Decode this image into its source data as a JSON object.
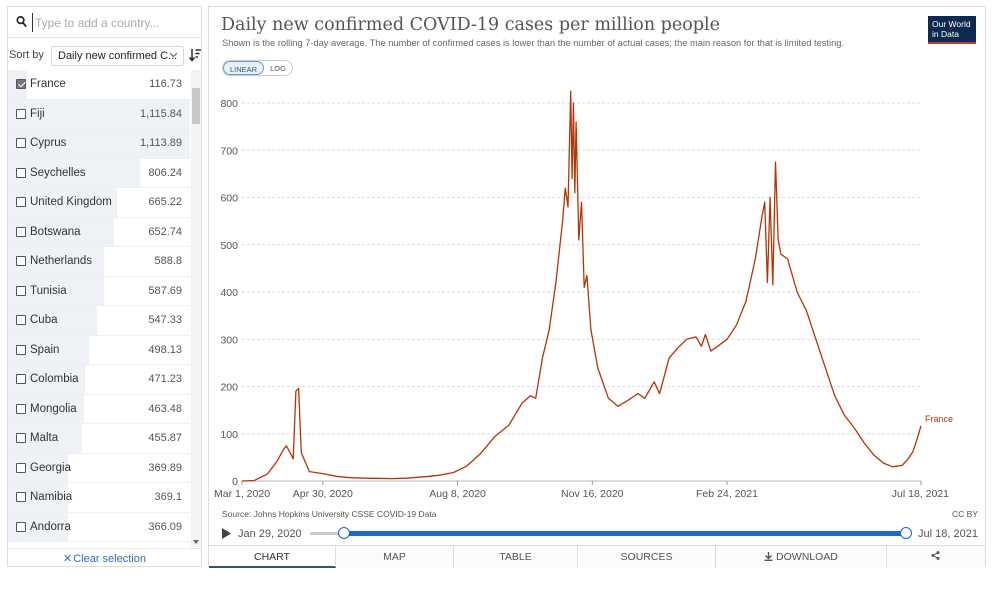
{
  "search": {
    "placeholder": "Type to add a country..."
  },
  "sort": {
    "label": "Sort by",
    "selected": "Daily new confirmed C..."
  },
  "countries": [
    {
      "name": "France",
      "value": "116.73",
      "checked": true
    },
    {
      "name": "Fiji",
      "value": "1,115.84",
      "checked": false
    },
    {
      "name": "Cyprus",
      "value": "1,113.89",
      "checked": false
    },
    {
      "name": "Seychelles",
      "value": "806.24",
      "checked": false
    },
    {
      "name": "United Kingdom",
      "value": "665.22",
      "checked": false
    },
    {
      "name": "Botswana",
      "value": "652.74",
      "checked": false
    },
    {
      "name": "Netherlands",
      "value": "588.8",
      "checked": false
    },
    {
      "name": "Tunisia",
      "value": "587.69",
      "checked": false
    },
    {
      "name": "Cuba",
      "value": "547.33",
      "checked": false
    },
    {
      "name": "Spain",
      "value": "498.13",
      "checked": false
    },
    {
      "name": "Colombia",
      "value": "471.23",
      "checked": false
    },
    {
      "name": "Mongolia",
      "value": "463.48",
      "checked": false
    },
    {
      "name": "Malta",
      "value": "455.87",
      "checked": false
    },
    {
      "name": "Georgia",
      "value": "369.89",
      "checked": false
    },
    {
      "name": "Namibia",
      "value": "369.1",
      "checked": false
    },
    {
      "name": "Andorra",
      "value": "366.09",
      "checked": false
    }
  ],
  "clear_selection": "Clear selection",
  "logo_text": "Our World in Data",
  "scale": {
    "linear": "LINEAR",
    "log": "LOG"
  },
  "source": "Source: Johns Hopkins University CSSE COVID-19 Data",
  "license": "CC BY",
  "timeline": {
    "start": "Jan 29, 2020",
    "end": "Jul 18, 2021"
  },
  "tabs": [
    "CHART",
    "MAP",
    "TABLE",
    "SOURCES",
    "DOWNLOAD",
    ""
  ],
  "colors": {
    "line": "#b13507",
    "accent": "#1a6ac6",
    "logo_bg": "#0f2a4f"
  },
  "icons": {
    "search": "search-icon",
    "sort_order": "sort-order-icon",
    "play": "play-icon",
    "download": "download-icon",
    "share": "share-icon"
  },
  "chart_data": {
    "type": "line",
    "title": "Daily new confirmed COVID-19 cases per million people",
    "subtitle": "Shown is the rolling 7-day average. The number of confirmed cases is lower than the number of actual cases; the main reason for that is limited testing.",
    "ylim": [
      0,
      800
    ],
    "yticks": [
      0,
      100,
      200,
      300,
      400,
      500,
      600,
      700,
      800
    ],
    "xticks": [
      "Mar 1, 2020",
      "Apr 30, 2020",
      "Aug 8, 2020",
      "Nov 16, 2020",
      "Feb 24, 2021",
      "Jul 18, 2021"
    ],
    "xtick_positions": [
      "2020-03-01",
      "2020-04-30",
      "2020-08-08",
      "2020-11-16",
      "2021-02-24",
      "2021-07-18"
    ],
    "xlim": [
      "2020-03-01",
      "2021-07-18"
    ],
    "grid": true,
    "series": [
      {
        "name": "France",
        "points": [
          [
            "2020-03-01",
            0
          ],
          [
            "2020-03-10",
            1
          ],
          [
            "2020-03-20",
            15
          ],
          [
            "2020-03-27",
            42
          ],
          [
            "2020-04-01",
            68
          ],
          [
            "2020-04-03",
            74
          ],
          [
            "2020-04-06",
            58
          ],
          [
            "2020-04-08",
            47
          ],
          [
            "2020-04-10",
            190
          ],
          [
            "2020-04-12",
            196
          ],
          [
            "2020-04-14",
            60
          ],
          [
            "2020-04-20",
            20
          ],
          [
            "2020-05-01",
            15
          ],
          [
            "2020-05-10",
            10
          ],
          [
            "2020-05-20",
            7
          ],
          [
            "2020-06-01",
            6
          ],
          [
            "2020-06-20",
            5
          ],
          [
            "2020-07-01",
            6
          ],
          [
            "2020-07-15",
            9
          ],
          [
            "2020-07-25",
            12
          ],
          [
            "2020-08-05",
            18
          ],
          [
            "2020-08-15",
            32
          ],
          [
            "2020-08-25",
            58
          ],
          [
            "2020-09-05",
            95
          ],
          [
            "2020-09-15",
            118
          ],
          [
            "2020-09-25",
            165
          ],
          [
            "2020-10-01",
            180
          ],
          [
            "2020-10-05",
            175
          ],
          [
            "2020-10-10",
            260
          ],
          [
            "2020-10-15",
            320
          ],
          [
            "2020-10-20",
            420
          ],
          [
            "2020-10-25",
            550
          ],
          [
            "2020-10-27",
            620
          ],
          [
            "2020-10-29",
            580
          ],
          [
            "2020-10-31",
            825
          ],
          [
            "2020-11-01",
            640
          ],
          [
            "2020-11-02",
            800
          ],
          [
            "2020-11-03",
            610
          ],
          [
            "2020-11-04",
            760
          ],
          [
            "2020-11-06",
            510
          ],
          [
            "2020-11-08",
            590
          ],
          [
            "2020-11-10",
            410
          ],
          [
            "2020-11-12",
            435
          ],
          [
            "2020-11-15",
            320
          ],
          [
            "2020-11-20",
            240
          ],
          [
            "2020-11-28",
            175
          ],
          [
            "2020-12-05",
            158
          ],
          [
            "2020-12-12",
            170
          ],
          [
            "2020-12-20",
            185
          ],
          [
            "2020-12-25",
            175
          ],
          [
            "2021-01-01",
            210
          ],
          [
            "2021-01-05",
            185
          ],
          [
            "2021-01-12",
            260
          ],
          [
            "2021-01-18",
            280
          ],
          [
            "2021-01-25",
            300
          ],
          [
            "2021-02-01",
            305
          ],
          [
            "2021-02-05",
            285
          ],
          [
            "2021-02-08",
            310
          ],
          [
            "2021-02-12",
            275
          ],
          [
            "2021-02-17",
            285
          ],
          [
            "2021-02-24",
            300
          ],
          [
            "2021-03-03",
            330
          ],
          [
            "2021-03-10",
            380
          ],
          [
            "2021-03-17",
            470
          ],
          [
            "2021-03-22",
            560
          ],
          [
            "2021-03-24",
            590
          ],
          [
            "2021-03-26",
            420
          ],
          [
            "2021-03-28",
            600
          ],
          [
            "2021-03-30",
            415
          ],
          [
            "2021-04-01",
            675
          ],
          [
            "2021-04-03",
            510
          ],
          [
            "2021-04-05",
            480
          ],
          [
            "2021-04-10",
            470
          ],
          [
            "2021-04-17",
            400
          ],
          [
            "2021-04-24",
            360
          ],
          [
            "2021-05-01",
            300
          ],
          [
            "2021-05-08",
            240
          ],
          [
            "2021-05-15",
            180
          ],
          [
            "2021-05-22",
            140
          ],
          [
            "2021-05-30",
            110
          ],
          [
            "2021-06-06",
            80
          ],
          [
            "2021-06-13",
            55
          ],
          [
            "2021-06-20",
            38
          ],
          [
            "2021-06-27",
            30
          ],
          [
            "2021-07-04",
            33
          ],
          [
            "2021-07-08",
            45
          ],
          [
            "2021-07-12",
            62
          ],
          [
            "2021-07-15",
            88
          ],
          [
            "2021-07-18",
            116.73
          ]
        ]
      }
    ]
  }
}
